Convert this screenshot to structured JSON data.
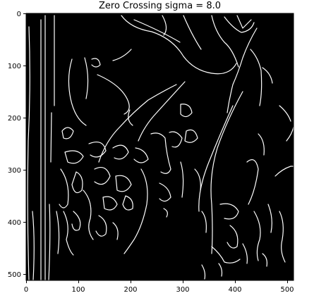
{
  "figure": {
    "title": "Zero Crossing sigma = 8.0"
  },
  "axes": {
    "x_ticks": [
      "0",
      "100",
      "200",
      "300",
      "400",
      "500"
    ],
    "y_ticks": [
      "0",
      "100",
      "200",
      "300",
      "400",
      "500"
    ],
    "x_range": [
      0,
      512
    ],
    "y_range": [
      0,
      512
    ]
  },
  "image": {
    "background": "#000000",
    "edge_color": "#ffffff"
  }
}
